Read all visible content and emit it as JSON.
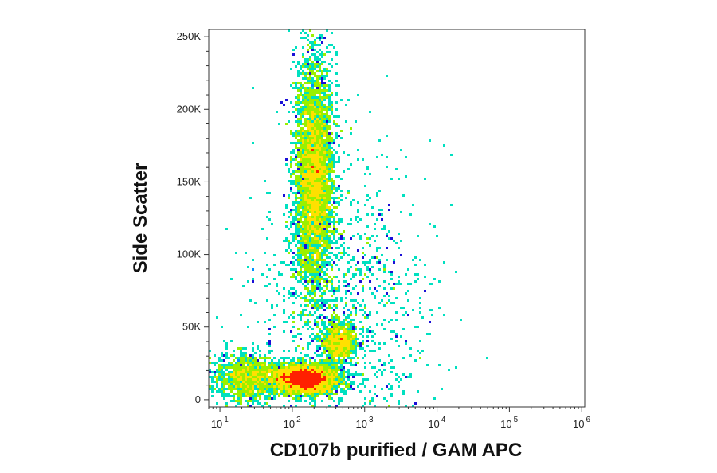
{
  "chart_data": {
    "type": "scatter",
    "subtype": "flow-cytometry-density-dot-plot",
    "xlabel": "CD107b purified / GAM APC",
    "ylabel": "Side Scatter",
    "x_scale": "log",
    "x_range": [
      7,
      1100000
    ],
    "y_range": [
      -5000,
      255000
    ],
    "x_ticks": [
      {
        "base": "10",
        "exp": "1",
        "value": 10
      },
      {
        "base": "10",
        "exp": "2",
        "value": 100
      },
      {
        "base": "10",
        "exp": "3",
        "value": 1000
      },
      {
        "base": "10",
        "exp": "4",
        "value": 10000
      },
      {
        "base": "10",
        "exp": "5",
        "value": 100000
      },
      {
        "base": "10",
        "exp": "6",
        "value": 1000000
      }
    ],
    "y_ticks": [
      {
        "label": "0",
        "value": 0
      },
      {
        "label": "50K",
        "value": 50000
      },
      {
        "label": "100K",
        "value": 100000
      },
      {
        "label": "150K",
        "value": 150000
      },
      {
        "label": "200K",
        "value": 200000
      },
      {
        "label": "250K",
        "value": 250000
      }
    ],
    "grid": false,
    "legend": "none",
    "density_palette": [
      "#1a0fd6",
      "#0090ff",
      "#00e0c0",
      "#9af000",
      "#ffe000",
      "#ff2000"
    ],
    "populations": [
      {
        "x_center": 150,
        "x_log_spread": 0.22,
        "y_center": 14000,
        "y_spread": 5000,
        "weight": 0.3
      },
      {
        "x_center": 200,
        "x_log_spread": 0.13,
        "y_center": 155000,
        "y_spread": 40000,
        "weight": 0.4
      },
      {
        "x_center": 450,
        "x_log_spread": 0.12,
        "y_center": 40000,
        "y_spread": 7000,
        "weight": 0.08
      },
      {
        "x_center": 25,
        "x_log_spread": 0.25,
        "y_center": 15000,
        "y_spread": 8000,
        "weight": 0.12
      },
      {
        "x_center": 500,
        "x_log_spread": 0.6,
        "y_center": 60000,
        "y_spread": 55000,
        "weight": 0.1
      }
    ]
  }
}
